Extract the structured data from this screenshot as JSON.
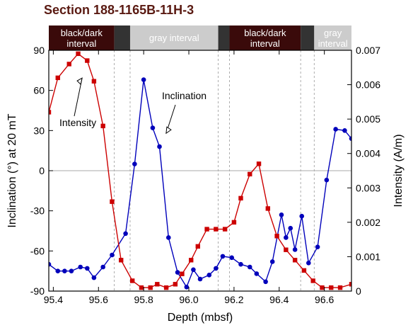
{
  "title": "Section 188-1165B-11H-3",
  "chart_data": {
    "type": "line",
    "title": "Section 188-1165B-11H-3",
    "xlabel": "Depth (mbsf)",
    "ylabel_left": "Inclination (°) at 20 mT",
    "ylabel_right": "Intensity (A/m)",
    "xlim": [
      95.38,
      96.72
    ],
    "ylim_left": [
      -90,
      90
    ],
    "ylim_right": [
      0,
      0.007
    ],
    "x_ticks": [
      95.4,
      95.6,
      95.8,
      96.0,
      96.2,
      96.4,
      96.6
    ],
    "x_tick_labels": [
      "95.4",
      "95.6",
      "95.8",
      "96.0",
      "96.2",
      "96.4",
      "96.6"
    ],
    "y_left_ticks": [
      90,
      60,
      30,
      0,
      -30,
      -60,
      -90
    ],
    "y_left_tick_labels": [
      "90",
      "60",
      "30",
      "0",
      "-30",
      "-60",
      "-90"
    ],
    "y_right_ticks": [
      0.007,
      0.006,
      0.005,
      0.004,
      0.003,
      0.002,
      0.001,
      0
    ],
    "y_right_tick_labels": [
      "0.007",
      "0.006",
      "0.005",
      "0.004",
      "0.003",
      "0.002",
      "0.001",
      "0"
    ],
    "zero_line": 0,
    "interval_boundaries": [
      95.67,
      95.74,
      96.13,
      96.18,
      96.495,
      96.555
    ],
    "intervals": [
      {
        "label": "black/dark interval",
        "line1": "black/dark",
        "line2": "interval",
        "x0": 95.38,
        "x1": 95.67,
        "color": "#3a0a0a",
        "text_color": "#ffffff"
      },
      {
        "label": "",
        "line1": "",
        "line2": "",
        "x0": 95.67,
        "x1": 95.74,
        "color": "#333333",
        "text_color": "#ffffff"
      },
      {
        "label": "gray interval",
        "line1": "gray interval",
        "line2": "",
        "x0": 95.74,
        "x1": 96.13,
        "color": "#cccccc",
        "text_color": "#ffffff"
      },
      {
        "label": "",
        "line1": "",
        "line2": "",
        "x0": 96.13,
        "x1": 96.18,
        "color": "#333333",
        "text_color": "#ffffff"
      },
      {
        "label": "black/dark interval",
        "line1": "black/dark",
        "line2": "interval",
        "x0": 96.18,
        "x1": 96.495,
        "color": "#3a0a0a",
        "text_color": "#ffffff"
      },
      {
        "label": "",
        "line1": "",
        "line2": "",
        "x0": 96.495,
        "x1": 96.555,
        "color": "#333333",
        "text_color": "#ffffff"
      },
      {
        "label": "gray interval",
        "line1": "gray",
        "line2": "interval",
        "x0": 96.555,
        "x1": 96.72,
        "color": "#cccccc",
        "text_color": "#ffffff"
      }
    ],
    "series": [
      {
        "name": "Inclination",
        "axis": "left",
        "color": "#0000bb",
        "marker": "circle",
        "x": [
          95.38,
          95.42,
          95.45,
          95.48,
          95.52,
          95.55,
          95.58,
          95.62,
          95.66,
          95.72,
          95.76,
          95.8,
          95.84,
          95.87,
          95.91,
          95.95,
          95.99,
          96.02,
          96.05,
          96.09,
          96.12,
          96.15,
          96.19,
          96.23,
          96.27,
          96.3,
          96.34,
          96.37,
          96.41,
          96.43,
          96.45,
          96.47,
          96.5,
          96.53,
          96.57,
          96.61,
          96.65,
          96.69,
          96.72
        ],
        "y": [
          -70,
          -75,
          -75,
          -75,
          -72,
          -73,
          -80,
          -72,
          -63,
          -47,
          5,
          68,
          32,
          18,
          -50,
          -76,
          -87,
          -74,
          -81,
          -78,
          -73,
          -64,
          -65,
          -70,
          -72,
          -77,
          -83,
          -68,
          -33,
          -50,
          -43,
          -59,
          -34,
          -69,
          -57,
          -7,
          31,
          30,
          24
        ]
      },
      {
        "name": "Intensity",
        "axis": "right",
        "color": "#cc0000",
        "marker": "square",
        "x": [
          95.38,
          95.42,
          95.47,
          95.51,
          95.55,
          95.58,
          95.62,
          95.66,
          95.7,
          95.75,
          95.79,
          95.83,
          95.86,
          95.9,
          95.94,
          95.97,
          96.01,
          96.04,
          96.08,
          96.12,
          96.16,
          96.2,
          96.23,
          96.27,
          96.31,
          96.35,
          96.39,
          96.43,
          96.47,
          96.51,
          96.55,
          96.59,
          96.63,
          96.67,
          96.72
        ],
        "y": [
          0.0052,
          0.0062,
          0.0066,
          0.0069,
          0.0067,
          0.0061,
          0.0048,
          0.0026,
          0.0009,
          0.0003,
          0.0001,
          0.0001,
          0.0002,
          0.0001,
          0.0002,
          0.0005,
          0.0009,
          0.0013,
          0.0018,
          0.0018,
          0.0018,
          0.002,
          0.0027,
          0.0034,
          0.0037,
          0.0024,
          0.0016,
          0.0012,
          0.0009,
          0.0006,
          0.0003,
          0.0001,
          0.0001,
          0.0001,
          0.0002
        ]
      }
    ],
    "annotations": [
      {
        "text": "Intensity",
        "series": "Intensity",
        "target_x": 95.54,
        "target_y_right": 0.0064
      },
      {
        "text": "Inclination",
        "series": "Inclination",
        "target_x": 95.89,
        "target_y_left": 29
      }
    ]
  }
}
